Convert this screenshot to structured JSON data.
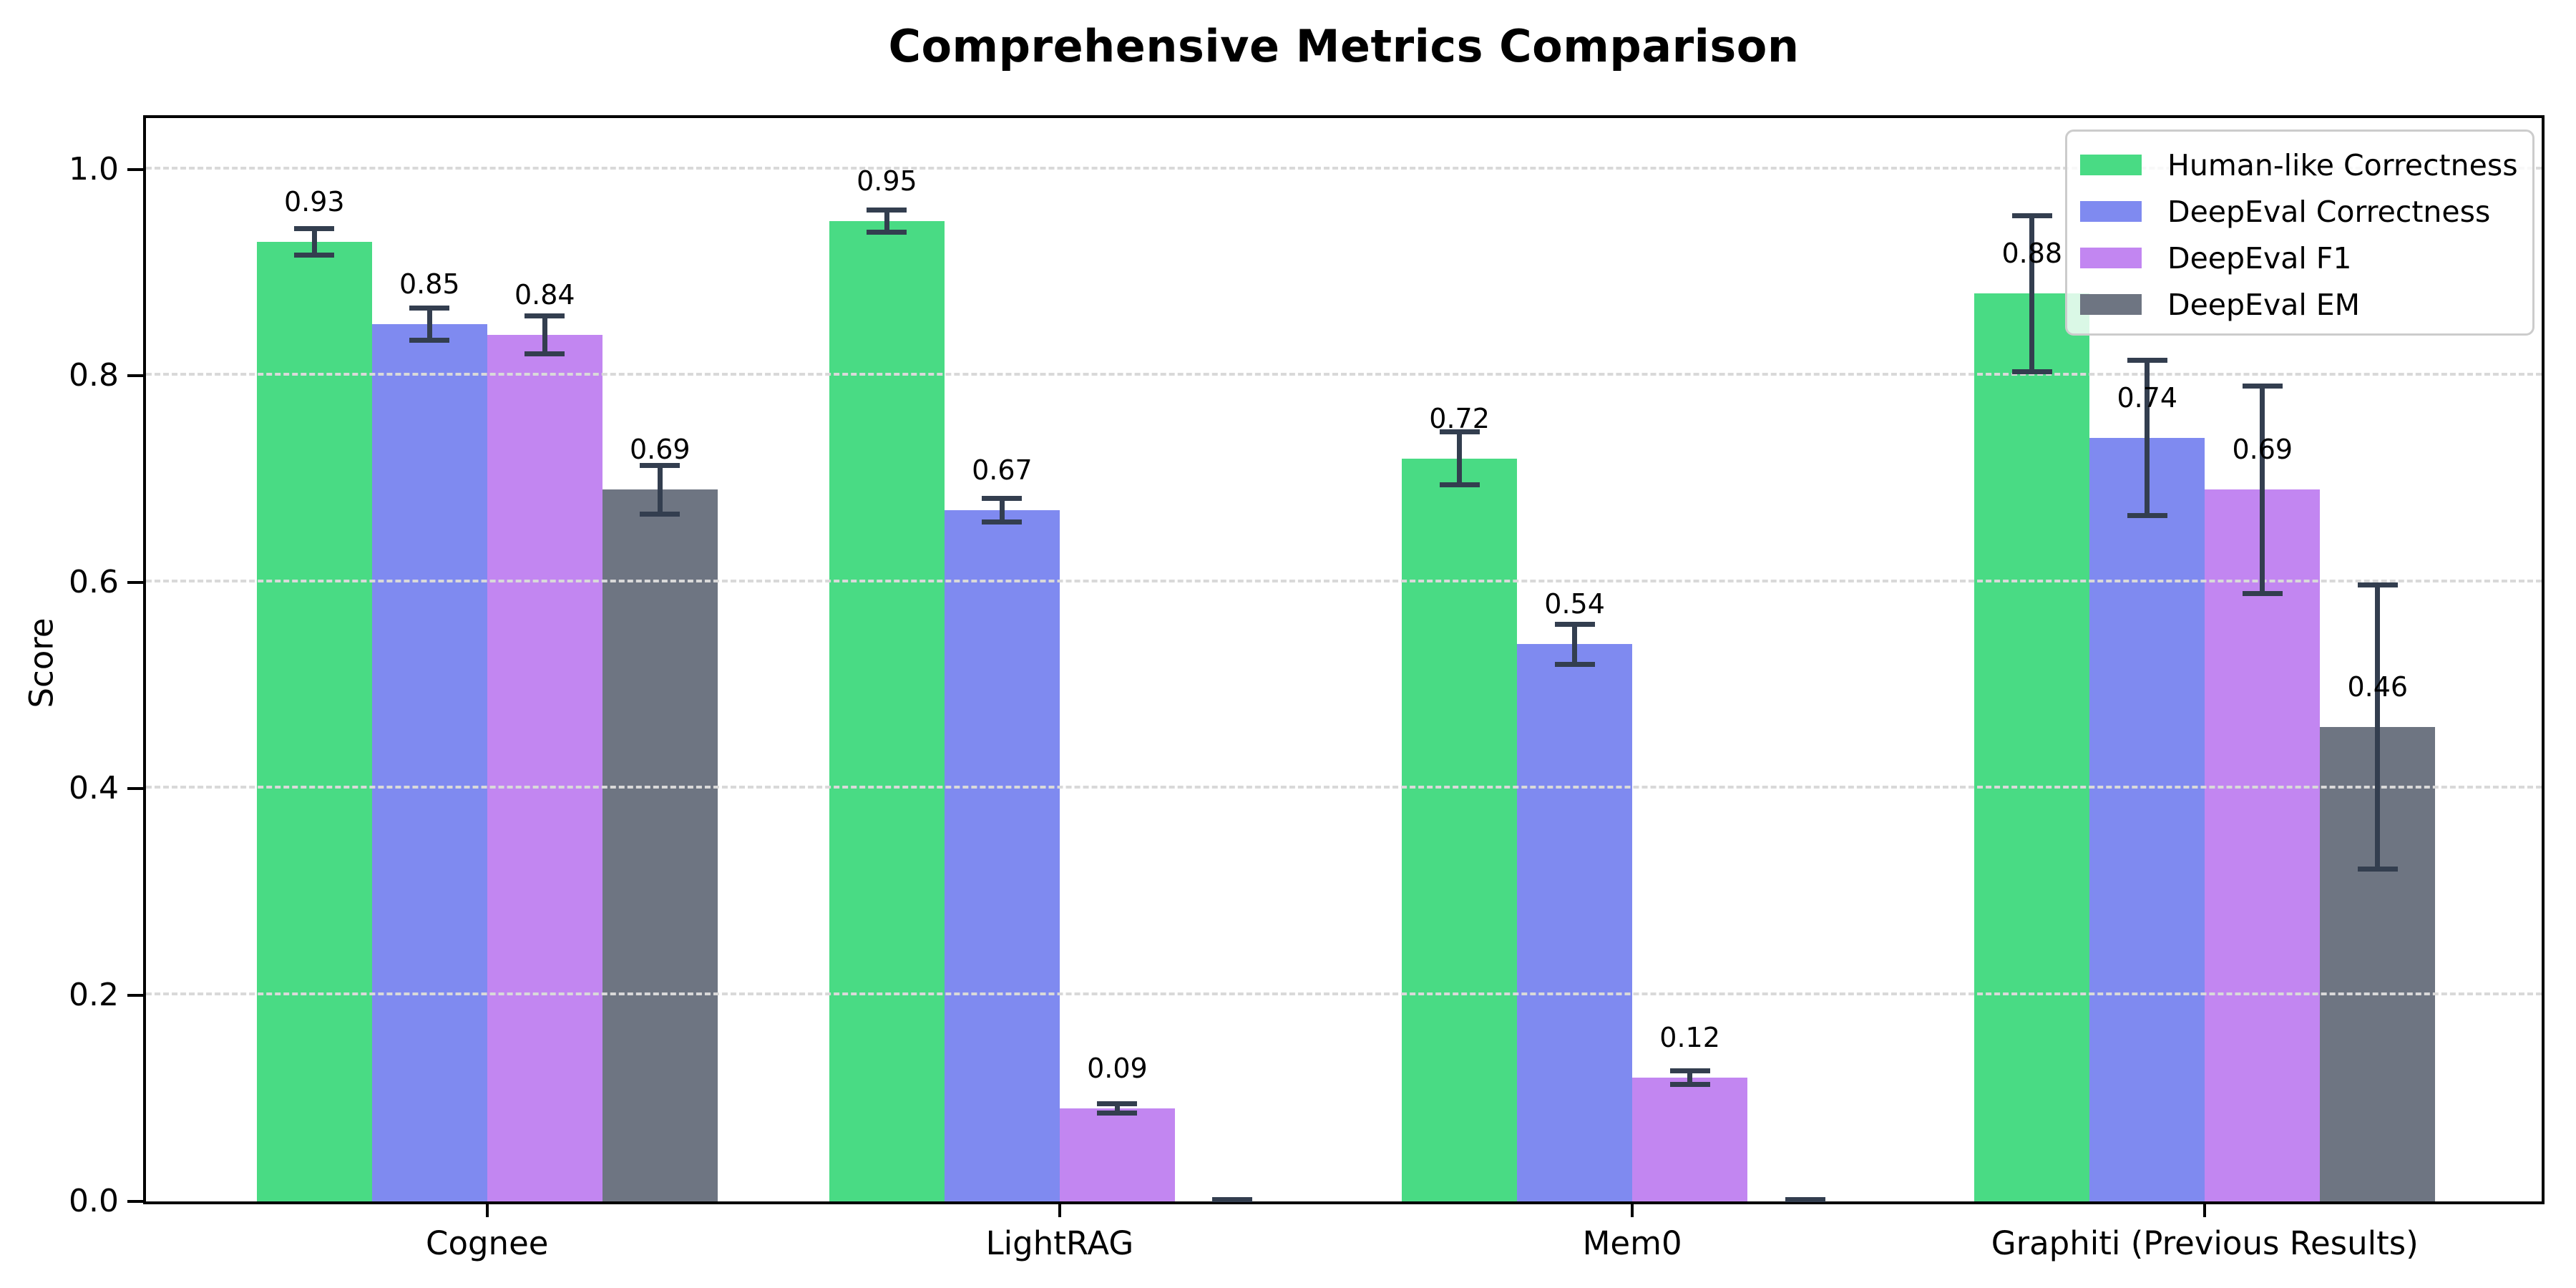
{
  "chart_data": {
    "type": "bar",
    "title": "Comprehensive Metrics Comparison",
    "ylabel": "Score",
    "xlabel": "",
    "categories": [
      "Cognee",
      "LightRAG",
      "Mem0",
      "Graphiti (Previous Results)"
    ],
    "series": [
      {
        "name": "Human-like Correctness",
        "color": "#49db84",
        "values": [
          0.93,
          0.95,
          0.72,
          0.88
        ],
        "errors": [
          0.015,
          0.013,
          0.028,
          0.078
        ],
        "value_labels": [
          "0.93",
          "0.95",
          "0.72",
          "0.88"
        ]
      },
      {
        "name": "DeepEval Correctness",
        "color": "#7f8af0",
        "values": [
          0.85,
          0.67,
          0.54,
          0.74
        ],
        "errors": [
          0.018,
          0.014,
          0.022,
          0.078
        ],
        "value_labels": [
          "0.85",
          "0.67",
          "0.54",
          "0.74"
        ]
      },
      {
        "name": "DeepEval F1",
        "color": "#c286f1",
        "values": [
          0.84,
          0.09,
          0.12,
          0.69
        ],
        "errors": [
          0.021,
          0.007,
          0.009,
          0.103
        ],
        "value_labels": [
          "0.84",
          "0.09",
          "0.12",
          "0.69"
        ]
      },
      {
        "name": "DeepEval EM",
        "color": "#6e7582",
        "values": [
          0.69,
          0.0,
          0.0,
          0.46
        ],
        "errors": [
          0.026,
          0.004,
          0.004,
          0.14
        ],
        "value_labels": [
          "0.69",
          "",
          "",
          "0.46"
        ]
      }
    ],
    "yticks": [
      0.0,
      0.2,
      0.4,
      0.6,
      0.8,
      1.0
    ],
    "ytick_labels": [
      "0.0",
      "0.2",
      "0.4",
      "0.6",
      "0.8",
      "1.0"
    ],
    "ylim": [
      0,
      1.05
    ],
    "grid": "horizontal-dashed-on-top",
    "grid_color": "#d9d9d9",
    "errorbar_color": "#333e4f",
    "legend_position": "upper-right",
    "background_color": "#ffffff"
  }
}
